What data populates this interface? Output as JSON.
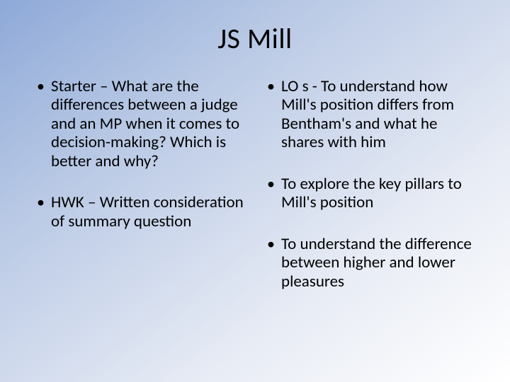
{
  "title": "JS Mill",
  "left_bullets": [
    "Starter – What are the differences between a judge and an MP when it comes to decision-making? Which is better and why?",
    "HWK – Written consideration of summary question"
  ],
  "right_bullets": [
    "LO s - To understand how Mill's position differs from Bentham's and what he shares with him",
    "To explore the key pillars to Mill's position",
    "To understand the difference between higher and lower pleasures"
  ],
  "gradient_start": "#8ea9d8",
  "gradient_end": "#ffffff",
  "title_fontsize": 40,
  "body_fontsize": 23,
  "text_color": "#000000"
}
